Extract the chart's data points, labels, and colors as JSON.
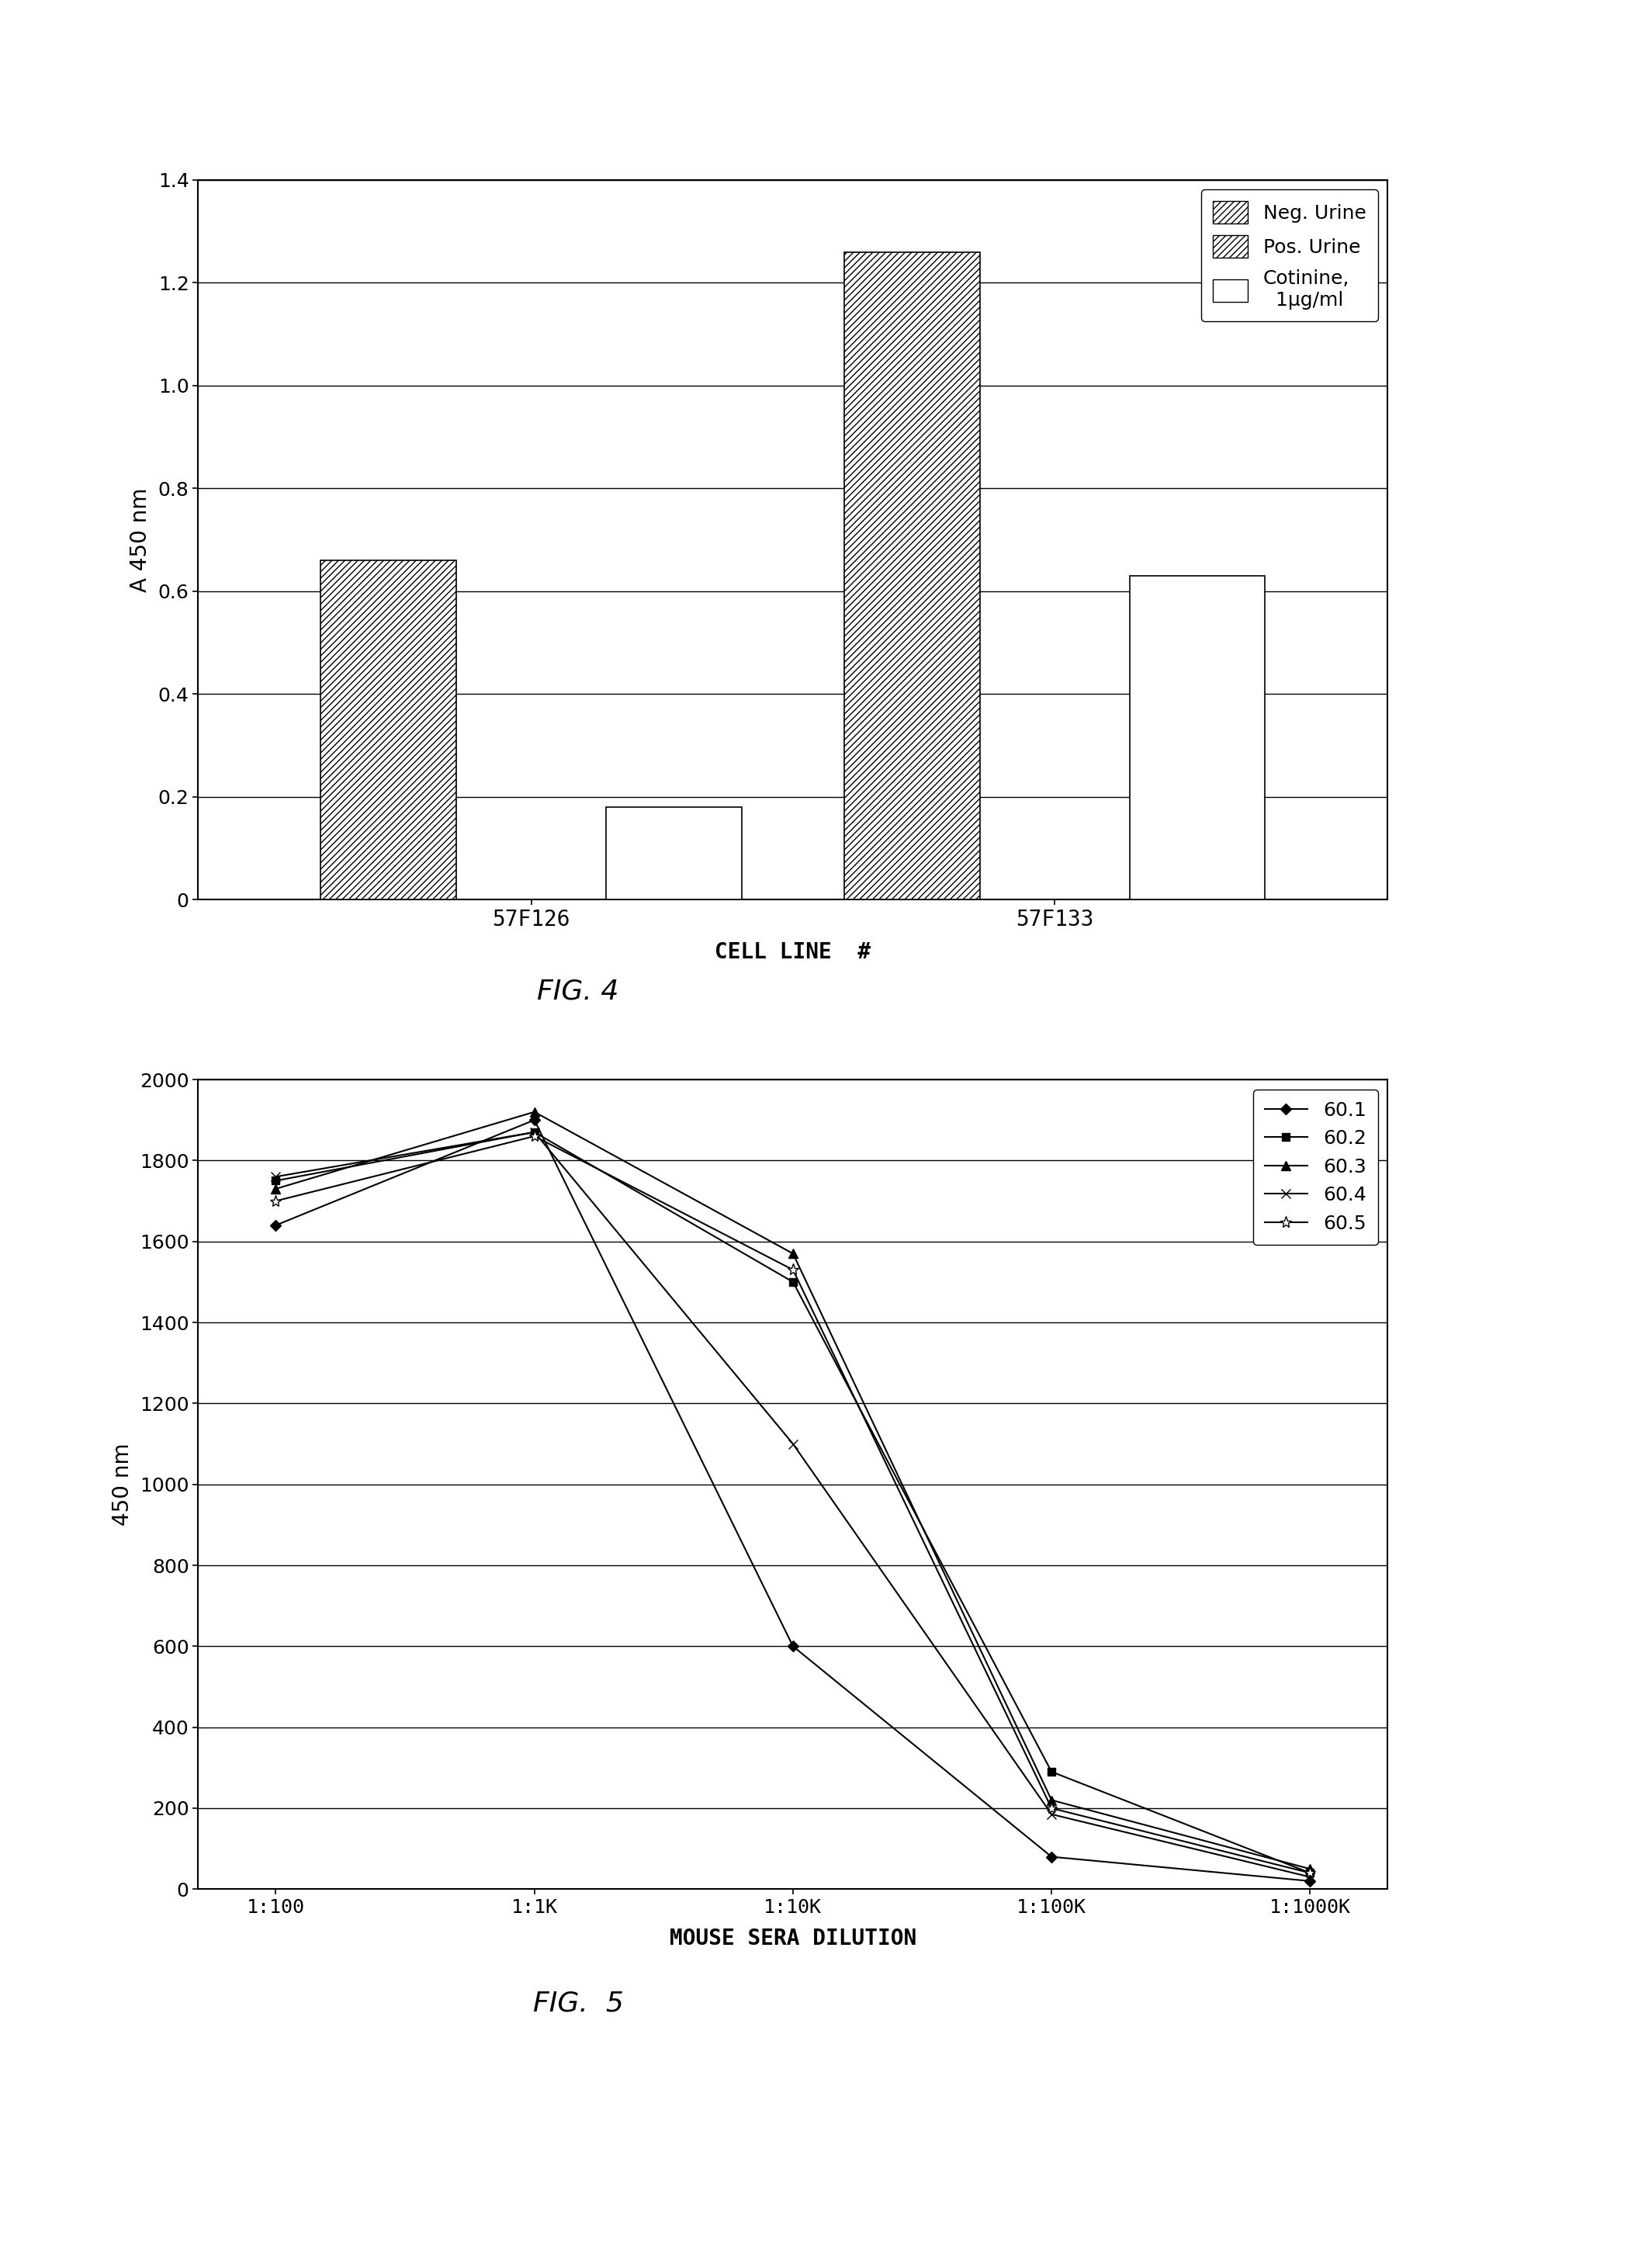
{
  "fig4": {
    "groups": [
      "57F126",
      "57F133"
    ],
    "series": [
      "Neg. Urine",
      "Pos. Urine",
      "Cotinine,\n1μg/ml"
    ],
    "values": {
      "57F126": [
        0.66,
        0.0,
        0.18
      ],
      "57F133": [
        1.26,
        0.0,
        0.63
      ]
    },
    "hatches": [
      "////",
      "////",
      ""
    ],
    "ylabel": "A 450 nm",
    "xlabel": "CELL LINE  #",
    "ylim": [
      0,
      1.4
    ],
    "yticks": [
      0,
      0.2,
      0.4,
      0.6,
      0.8,
      1.0,
      1.2,
      1.4
    ],
    "fig_caption": "FIG. 4",
    "bar_width": 0.12,
    "group_centers": [
      0.28,
      0.72
    ]
  },
  "fig5": {
    "x_labels": [
      "1:100",
      "1:1K",
      "1:10K",
      "1:100K",
      "1:1000K"
    ],
    "x_values": [
      0,
      1,
      2,
      3,
      4
    ],
    "series": {
      "60.1": [
        1640,
        1900,
        600,
        80,
        20
      ],
      "60.2": [
        1750,
        1870,
        1500,
        290,
        40
      ],
      "60.3": [
        1730,
        1920,
        1570,
        220,
        50
      ],
      "60.4": [
        1760,
        1870,
        1100,
        185,
        30
      ],
      "60.5": [
        1700,
        1860,
        1530,
        200,
        40
      ]
    },
    "markers": [
      "D",
      "s",
      "^",
      "x",
      "*"
    ],
    "series_names": [
      "60.1",
      "60.2",
      "60.3",
      "60.4",
      "60.5"
    ],
    "marker_sizes": [
      7,
      7,
      8,
      9,
      11
    ],
    "marker_facecolors": [
      "black",
      "black",
      "black",
      "none",
      "none"
    ],
    "ylabel": "450 nm",
    "xlabel": "MOUSE SERA DILUTION",
    "ylim": [
      0,
      2000
    ],
    "yticks": [
      0,
      200,
      400,
      600,
      800,
      1000,
      1200,
      1400,
      1600,
      1800,
      2000
    ],
    "fig_caption": "FIG.  5"
  },
  "background_color": "#ffffff"
}
